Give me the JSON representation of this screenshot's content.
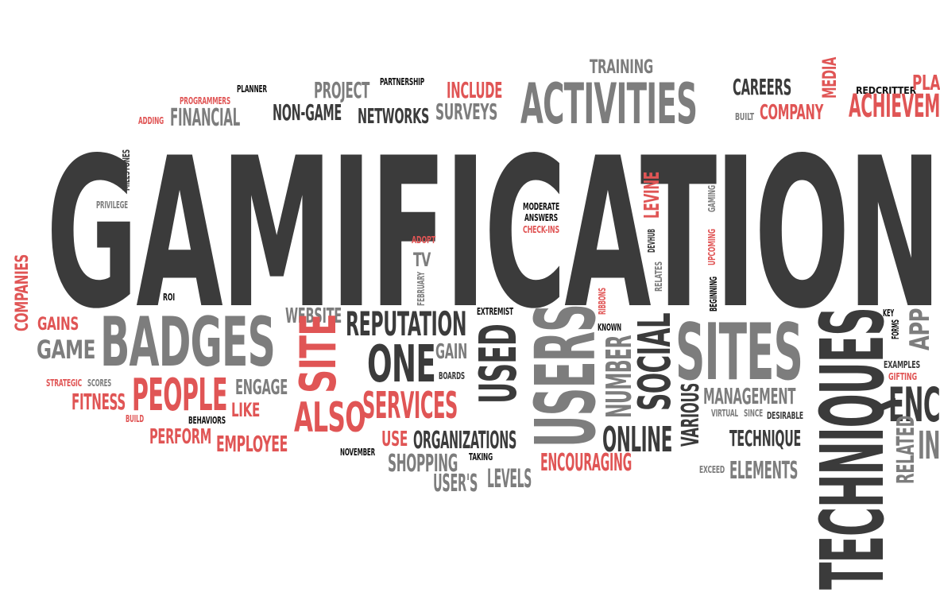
{
  "palette": {
    "dark": "#3b3b3b",
    "gray": "#7d7d7d",
    "red": "#e05555",
    "black": "#111111"
  },
  "words": [
    {
      "id": "gamification",
      "text": "GAMIFICATION",
      "color": "dark"
    },
    {
      "id": "activities",
      "text": "ACTIVITIES",
      "color": "gray"
    },
    {
      "id": "training",
      "text": "TRAINING",
      "color": "gray"
    },
    {
      "id": "careers",
      "text": "CAREERS",
      "color": "dark"
    },
    {
      "id": "company",
      "text": "COMPANY",
      "color": "red"
    },
    {
      "id": "built",
      "text": "BUILT",
      "color": "gray"
    },
    {
      "id": "media",
      "text": "MEDIA",
      "color": "red"
    },
    {
      "id": "redcritter",
      "text": "REDCRITTER",
      "color": "black"
    },
    {
      "id": "pla",
      "text": "PLA",
      "color": "red"
    },
    {
      "id": "achievem",
      "text": "ACHIEVEM",
      "color": "red"
    },
    {
      "id": "project",
      "text": "PROJECT",
      "color": "gray"
    },
    {
      "id": "partnership",
      "text": "PARTNERSHIP",
      "color": "black"
    },
    {
      "id": "include",
      "text": "INCLUDE",
      "color": "red"
    },
    {
      "id": "surveys",
      "text": "SURVEYS",
      "color": "gray"
    },
    {
      "id": "networks",
      "text": "NETWORKS",
      "color": "dark"
    },
    {
      "id": "non-game",
      "text": "NON-GAME",
      "color": "dark"
    },
    {
      "id": "planner",
      "text": "PLANNER",
      "color": "black"
    },
    {
      "id": "programmers",
      "text": "PROGRAMMERS",
      "color": "red"
    },
    {
      "id": "adding",
      "text": "ADDING",
      "color": "red"
    },
    {
      "id": "financial",
      "text": "FINANCIAL",
      "color": "gray"
    },
    {
      "id": "milestones",
      "text": "MILESTONES",
      "color": "dark"
    },
    {
      "id": "privilege",
      "text": "PRIVILEGE",
      "color": "gray"
    },
    {
      "id": "moderate",
      "text": "MODERATE",
      "color": "black"
    },
    {
      "id": "answers",
      "text": "ANSWERS",
      "color": "black"
    },
    {
      "id": "check-ins",
      "text": "CHECK-INS",
      "color": "red"
    },
    {
      "id": "levine",
      "text": "LEVINE",
      "color": "red"
    },
    {
      "id": "devhub",
      "text": "DEVHUB",
      "color": "dark"
    },
    {
      "id": "gaming",
      "text": "GAMING",
      "color": "gray"
    },
    {
      "id": "upcoming",
      "text": "UPCOMING",
      "color": "red"
    },
    {
      "id": "relates",
      "text": "RELATES",
      "color": "gray"
    },
    {
      "id": "beginning",
      "text": "BEGINNING",
      "color": "black"
    },
    {
      "id": "ribbons",
      "text": "RIBBONS",
      "color": "red"
    },
    {
      "id": "adopt",
      "text": "ADOPT",
      "color": "red"
    },
    {
      "id": "tv",
      "text": "TV",
      "color": "gray"
    },
    {
      "id": "february",
      "text": "FEBRUARY",
      "color": "gray"
    },
    {
      "id": "roi",
      "text": "ROI",
      "color": "black"
    },
    {
      "id": "companies",
      "text": "COMPANIES",
      "color": "red"
    },
    {
      "id": "gains",
      "text": "GAINS",
      "color": "red"
    },
    {
      "id": "game",
      "text": "GAME",
      "color": "gray"
    },
    {
      "id": "badges",
      "text": "BADGES",
      "color": "gray"
    },
    {
      "id": "strategic",
      "text": "STRATEGIC",
      "color": "red"
    },
    {
      "id": "scores",
      "text": "SCORES",
      "color": "gray"
    },
    {
      "id": "fitness",
      "text": "FITNESS",
      "color": "red"
    },
    {
      "id": "people",
      "text": "PEOPLE",
      "color": "red"
    },
    {
      "id": "engage",
      "text": "ENGAGE",
      "color": "gray"
    },
    {
      "id": "like",
      "text": "LIKE",
      "color": "red"
    },
    {
      "id": "build",
      "text": "BUILD",
      "color": "red"
    },
    {
      "id": "behaviors",
      "text": "BEHAVIORS",
      "color": "black"
    },
    {
      "id": "perform",
      "text": "PERFORM",
      "color": "red"
    },
    {
      "id": "employee",
      "text": "EMPLOYEE",
      "color": "red"
    },
    {
      "id": "website",
      "text": "WEBSITE",
      "color": "gray"
    },
    {
      "id": "site",
      "text": "SITE",
      "color": "red"
    },
    {
      "id": "also",
      "text": "ALSO",
      "color": "red"
    },
    {
      "id": "reputation",
      "text": "REPUTATION",
      "color": "dark"
    },
    {
      "id": "one",
      "text": "ONE",
      "color": "dark"
    },
    {
      "id": "gain",
      "text": "GAIN",
      "color": "gray"
    },
    {
      "id": "boards",
      "text": "BOARDS",
      "color": "dark"
    },
    {
      "id": "services",
      "text": "SERVICES",
      "color": "red"
    },
    {
      "id": "extremist",
      "text": "EXTREMIST",
      "color": "black"
    },
    {
      "id": "used",
      "text": "USED",
      "color": "dark"
    },
    {
      "id": "users",
      "text": "USERS",
      "color": "gray"
    },
    {
      "id": "known",
      "text": "KNOWN",
      "color": "black"
    },
    {
      "id": "number",
      "text": "NUMBER",
      "color": "gray"
    },
    {
      "id": "social",
      "text": "SOCIAL",
      "color": "dark"
    },
    {
      "id": "sites",
      "text": "SITES",
      "color": "gray"
    },
    {
      "id": "various",
      "text": "VARIOUS",
      "color": "dark"
    },
    {
      "id": "management",
      "text": "MANAGEMENT",
      "color": "gray"
    },
    {
      "id": "virtual",
      "text": "VIRTUAL",
      "color": "gray"
    },
    {
      "id": "since",
      "text": "SINCE",
      "color": "gray"
    },
    {
      "id": "desirable",
      "text": "DESIRABLE",
      "color": "dark"
    },
    {
      "id": "technique",
      "text": "TECHNIQUE",
      "color": "dark"
    },
    {
      "id": "online",
      "text": "ONLINE",
      "color": "dark"
    },
    {
      "id": "exceed",
      "text": "EXCEED",
      "color": "gray"
    },
    {
      "id": "elements",
      "text": "ELEMENTS",
      "color": "gray"
    },
    {
      "id": "techniques",
      "text": "TECHNIQUES",
      "color": "dark"
    },
    {
      "id": "key",
      "text": "KEY",
      "color": "black"
    },
    {
      "id": "forms",
      "text": "FORMS",
      "color": "black"
    },
    {
      "id": "app",
      "text": "APP",
      "color": "gray"
    },
    {
      "id": "examples",
      "text": "EXAMPLES",
      "color": "dark"
    },
    {
      "id": "gifting",
      "text": "GIFTING",
      "color": "red"
    },
    {
      "id": "enc",
      "text": "ENC",
      "color": "dark"
    },
    {
      "id": "related",
      "text": "RELATED",
      "color": "gray"
    },
    {
      "id": "in",
      "text": "IN",
      "color": "gray"
    },
    {
      "id": "use",
      "text": "USE",
      "color": "red"
    },
    {
      "id": "organizations",
      "text": "ORGANIZATIONS",
      "color": "dark"
    },
    {
      "id": "november",
      "text": "NOVEMBER",
      "color": "black"
    },
    {
      "id": "shopping",
      "text": "SHOPPING",
      "color": "gray"
    },
    {
      "id": "taking",
      "text": "TAKING",
      "color": "black"
    },
    {
      "id": "users-possessive",
      "text": "USER'S",
      "color": "gray"
    },
    {
      "id": "levels",
      "text": "LEVELS",
      "color": "gray"
    },
    {
      "id": "encouraging",
      "text": "ENCOURAGING",
      "color": "red"
    }
  ]
}
